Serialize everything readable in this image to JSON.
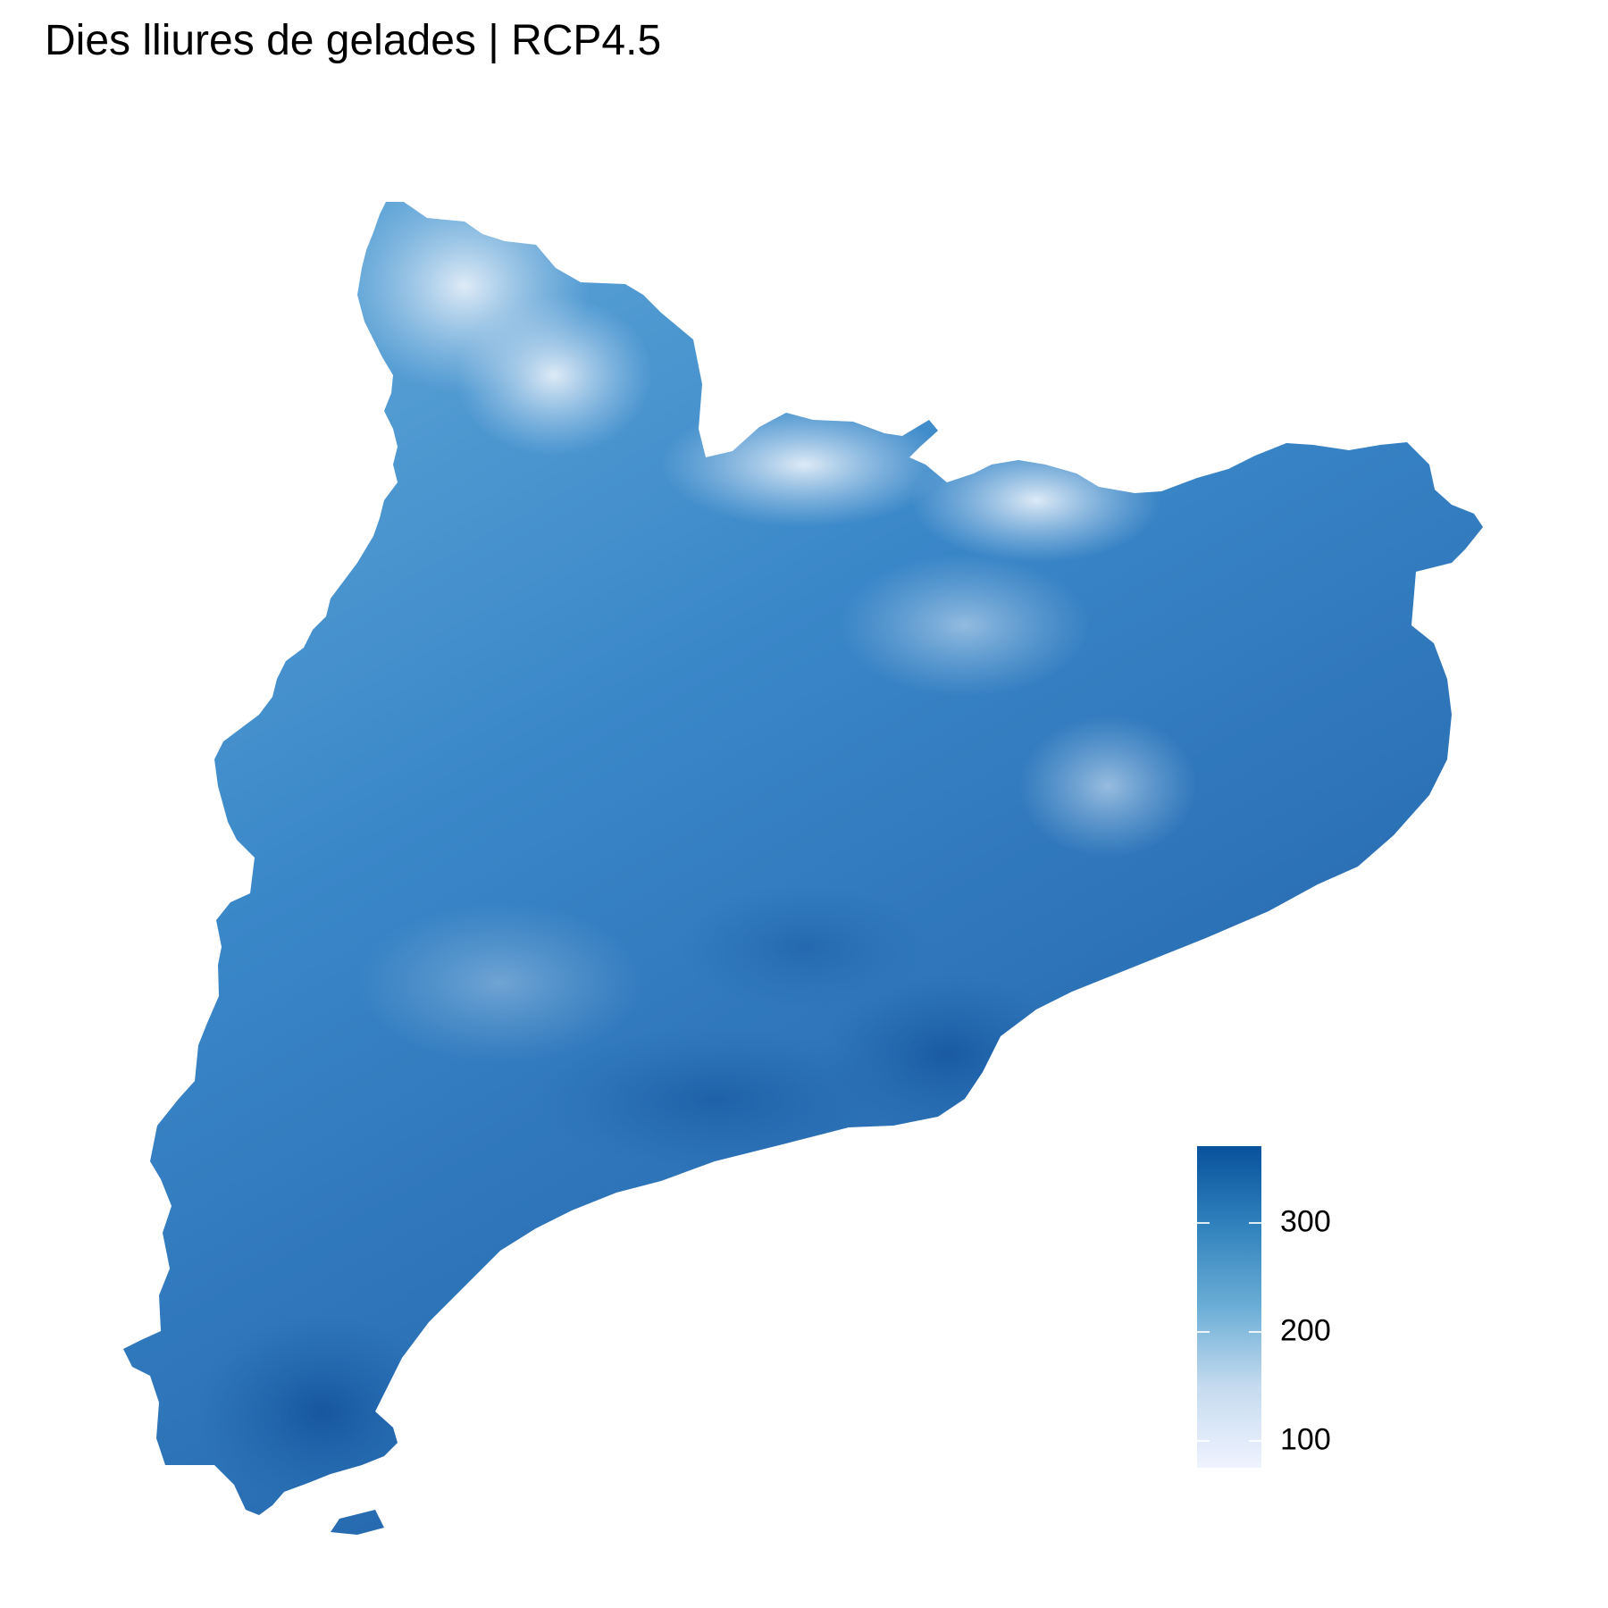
{
  "map": {
    "title": "Dies lliures de gelades | RCP4.5",
    "region": "Catalonia",
    "palette": {
      "low": "#eff3ff",
      "mid_low": "#c6dbef",
      "mid": "#6baed6",
      "mid_high": "#3182bd",
      "high": "#08519c"
    }
  },
  "legend": {
    "min": 75,
    "max": 370,
    "ticks": [
      {
        "value": 300,
        "label": "300"
      },
      {
        "value": 200,
        "label": "200"
      },
      {
        "value": 100,
        "label": "100"
      }
    ]
  }
}
